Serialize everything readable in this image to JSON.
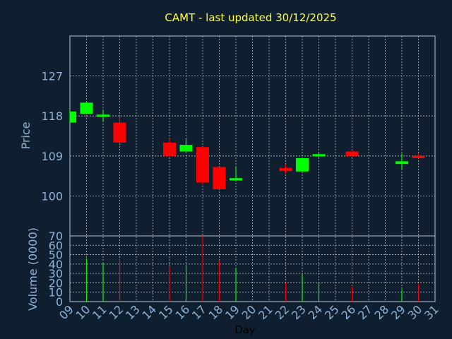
{
  "chart_data": {
    "type": "candlestick",
    "title": "CAMT - last updated 30/12/2025",
    "xlabel": "Day",
    "price_axis": {
      "label": "Price",
      "ticks": [
        100,
        109,
        118,
        127
      ],
      "range": [
        91,
        136
      ]
    },
    "volume_axis": {
      "label": "Volume (0000)",
      "ticks": [
        0,
        10,
        20,
        30,
        40,
        50,
        60,
        70
      ],
      "range": [
        0,
        70
      ]
    },
    "x_ticks": [
      "09",
      "10",
      "11",
      "12",
      "13",
      "14",
      "15",
      "16",
      "17",
      "18",
      "19",
      "20",
      "21",
      "22",
      "23",
      "24",
      "25",
      "26",
      "27",
      "28",
      "29",
      "30",
      "31"
    ],
    "candles": [
      {
        "day": "09",
        "open": 116.5,
        "high": 119.5,
        "low": 116.5,
        "close": 119.0,
        "volume": 0
      },
      {
        "day": "10",
        "open": 118.5,
        "high": 121.3,
        "low": 118.5,
        "close": 121.0,
        "volume": 46
      },
      {
        "day": "11",
        "open": 118.0,
        "high": 119.2,
        "low": 116.8,
        "close": 118.3,
        "volume": 41
      },
      {
        "day": "12",
        "open": 116.5,
        "high": 118.0,
        "low": 112.0,
        "close": 112.0,
        "volume": 45
      },
      {
        "day": "15",
        "open": 112.0,
        "high": 113.0,
        "low": 109.0,
        "close": 109.0,
        "volume": 37
      },
      {
        "day": "16",
        "open": 110.0,
        "high": 113.0,
        "low": 110.0,
        "close": 111.5,
        "volume": 38
      },
      {
        "day": "17",
        "open": 111.0,
        "high": 111.0,
        "low": 102.5,
        "close": 103.0,
        "volume": 70
      },
      {
        "day": "18",
        "open": 106.5,
        "high": 106.5,
        "low": 101.5,
        "close": 101.5,
        "volume": 43
      },
      {
        "day": "19",
        "open": 103.5,
        "high": 106.5,
        "low": 103.5,
        "close": 104.0,
        "volume": 36
      },
      {
        "day": "22",
        "open": 106.3,
        "high": 107.0,
        "low": 105.0,
        "close": 105.6,
        "volume": 20
      },
      {
        "day": "23",
        "open": 105.5,
        "high": 108.5,
        "low": 105.2,
        "close": 108.5,
        "volume": 29
      },
      {
        "day": "24",
        "open": 109.0,
        "high": 109.8,
        "low": 108.7,
        "close": 109.4,
        "volume": 21
      },
      {
        "day": "26",
        "open": 110.0,
        "high": 110.3,
        "low": 108.8,
        "close": 109.0,
        "volume": 16
      },
      {
        "day": "29",
        "open": 107.2,
        "high": 109.5,
        "low": 106.0,
        "close": 107.8,
        "volume": 13
      },
      {
        "day": "30",
        "open": 109.0,
        "high": 109.5,
        "low": 108.4,
        "close": 108.5,
        "volume": 19
      }
    ],
    "colors": {
      "up": "#00ff00",
      "down": "#ff0000",
      "grid": "#d8d8d8",
      "title": "#ffff33",
      "axis_text": "#8fb4d9",
      "background": "#0f1f2f"
    }
  }
}
